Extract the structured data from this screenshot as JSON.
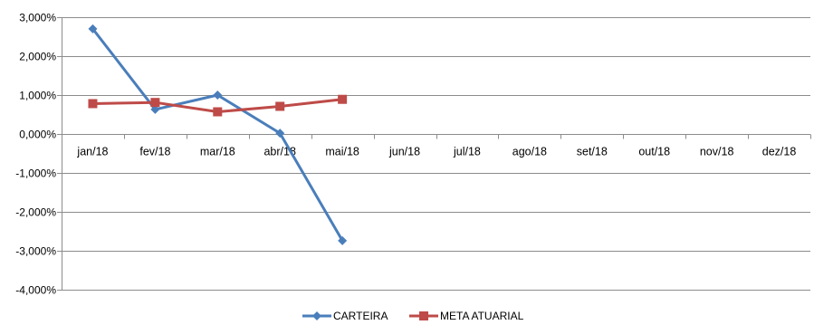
{
  "chart_data": {
    "type": "line",
    "title": "",
    "xlabel": "",
    "ylabel": "",
    "categories": [
      "jan/18",
      "fev/18",
      "mar/18",
      "abr/18",
      "mai/18",
      "jun/18",
      "jul/18",
      "ago/18",
      "set/18",
      "out/18",
      "nov/18",
      "dez/18"
    ],
    "ylim": [
      -4,
      3
    ],
    "yticks": [
      3,
      2,
      1,
      0,
      -1,
      -2,
      -3,
      -4
    ],
    "ytick_labels": [
      "3,000%",
      "2,000%",
      "1,000%",
      "0,000%",
      "-1,000%",
      "-2,000%",
      "-3,000%",
      "-4,000%"
    ],
    "grid": true,
    "legend_position": "bottom",
    "series": [
      {
        "name": "CARTEIRA",
        "color": "#4a7ebb",
        "marker": "diamond",
        "values": [
          2.7,
          0.63,
          1.0,
          0.02,
          -2.74,
          null,
          null,
          null,
          null,
          null,
          null,
          null
        ]
      },
      {
        "name": "META ATUARIAL",
        "color": "#be4b48",
        "marker": "square",
        "values": [
          0.78,
          0.81,
          0.57,
          0.71,
          0.89,
          null,
          null,
          null,
          null,
          null,
          null,
          null
        ]
      }
    ]
  }
}
